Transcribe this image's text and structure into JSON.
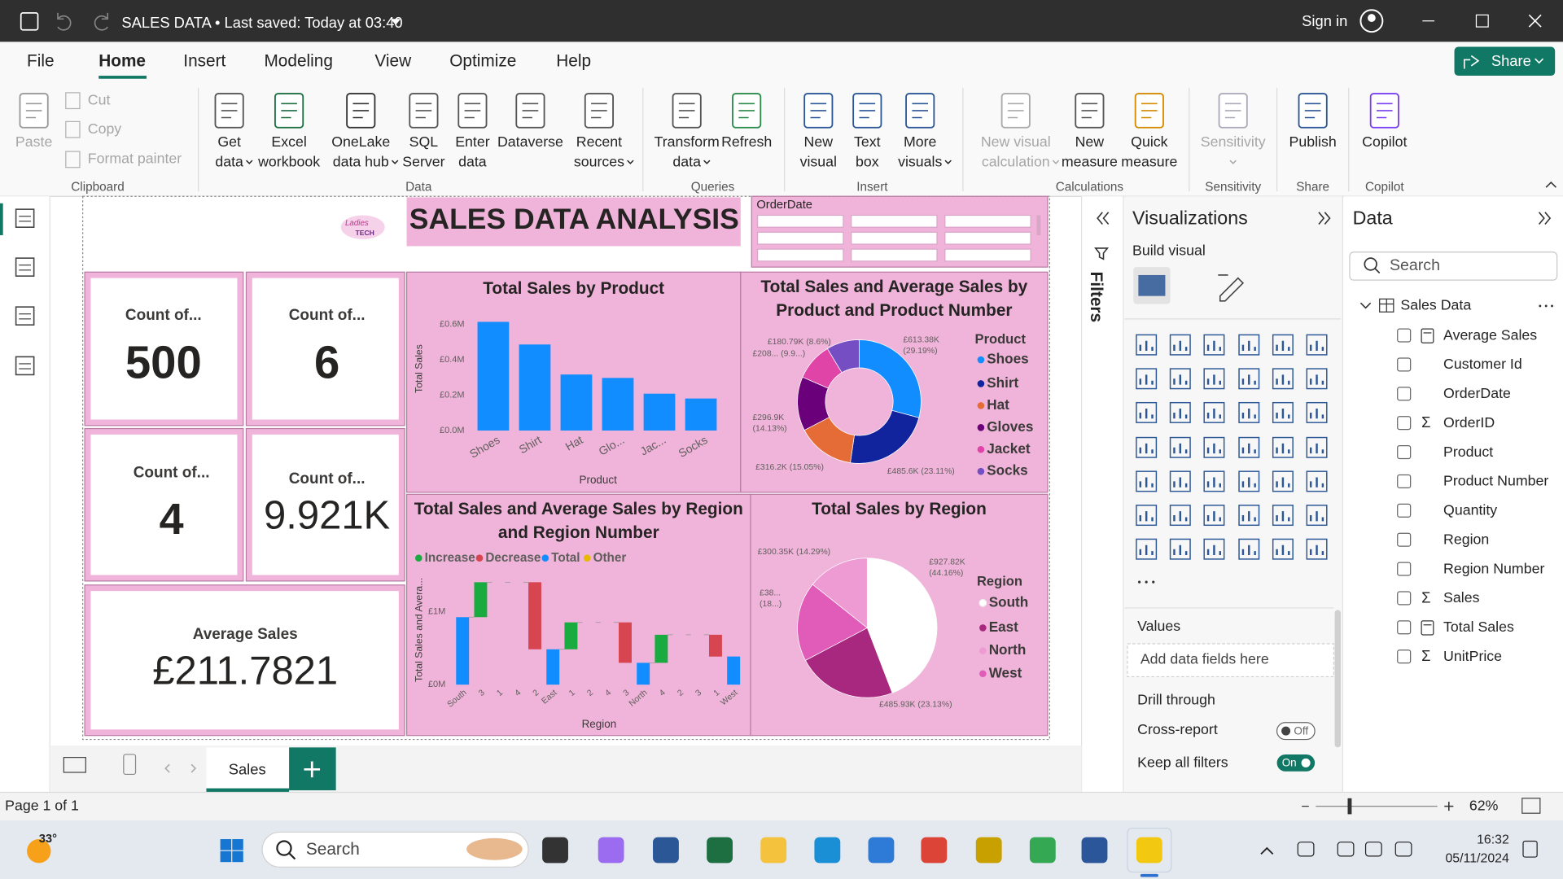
{
  "title_bar": {
    "document": "SALES DATA  •  Last saved: Today at 03:40",
    "sign_in": "Sign in"
  },
  "menu": {
    "tabs": [
      "File",
      "Home",
      "Insert",
      "Modeling",
      "View",
      "Optimize",
      "Help"
    ],
    "active": 1,
    "share": "Share"
  },
  "ribbon": {
    "buttons": [
      {
        "lines": [
          "Paste"
        ],
        "enabled": false
      },
      {
        "lines": [
          "Get",
          "data"
        ],
        "enabled": true,
        "dropdown": true
      },
      {
        "lines": [
          "Excel",
          "workbook"
        ],
        "enabled": true
      },
      {
        "lines": [
          "OneLake",
          "data hub"
        ],
        "enabled": true,
        "dropdown": true
      },
      {
        "lines": [
          "SQL",
          "Server"
        ],
        "enabled": true
      },
      {
        "lines": [
          "Enter",
          "data"
        ],
        "enabled": true
      },
      {
        "lines": [
          "Dataverse"
        ],
        "enabled": true
      },
      {
        "lines": [
          "Recent",
          "sources"
        ],
        "enabled": true,
        "dropdown": true
      },
      {
        "lines": [
          "Transform",
          "data"
        ],
        "enabled": true,
        "dropdown": true
      },
      {
        "lines": [
          "Refresh"
        ],
        "enabled": true
      },
      {
        "lines": [
          "New",
          "visual"
        ],
        "enabled": true
      },
      {
        "lines": [
          "Text",
          "box"
        ],
        "enabled": true
      },
      {
        "lines": [
          "More",
          "visuals"
        ],
        "enabled": true,
        "dropdown": true
      },
      {
        "lines": [
          "New visual",
          "calculation"
        ],
        "enabled": false,
        "dropdown": true
      },
      {
        "lines": [
          "New",
          "measure"
        ],
        "enabled": true
      },
      {
        "lines": [
          "Quick",
          "measure"
        ],
        "enabled": true
      },
      {
        "lines": [
          "Sensitivity"
        ],
        "enabled": false,
        "dropdown": true
      },
      {
        "lines": [
          "Publish"
        ],
        "enabled": true
      },
      {
        "lines": [
          "Copilot"
        ],
        "enabled": true
      }
    ],
    "small_buttons": [
      "Cut",
      "Copy",
      "Format painter"
    ],
    "groups": [
      "Clipboard",
      "Data",
      "Queries",
      "Insert",
      "Calculations",
      "Sensitivity",
      "Share",
      "Copilot"
    ]
  },
  "report": {
    "title": "SALES DATA ANALYSIS",
    "logo": [
      "Ladies",
      "TECH"
    ],
    "slicer": "OrderDate",
    "cards": [
      {
        "label": "Count of...",
        "value": "500",
        "bold": true
      },
      {
        "label": "Count of...",
        "value": "6",
        "bold": true
      },
      {
        "label": "Count of...",
        "value": "4",
        "bold": true
      },
      {
        "label": "Count of...",
        "value": "9.921K",
        "bold": false
      },
      {
        "label": "Average Sales",
        "value": "£211.7821",
        "bold": false
      }
    ]
  },
  "chart_data": [
    {
      "type": "bar",
      "title": "Total Sales by Product",
      "x_label": "Product",
      "y_label": "Total Sales",
      "categories": [
        "Shoes",
        "Shirt",
        "Hat",
        "Glo...",
        "Jac...",
        "Socks"
      ],
      "values": [
        0.61338,
        0.4856,
        0.3162,
        0.2969,
        0.208,
        0.18079
      ],
      "color": "#118dff",
      "ylim": [
        0,
        0.63
      ],
      "yticks": [
        {
          "value": 0,
          "label": "£0.0M"
        },
        {
          "value": 0.2,
          "label": "£0.2M"
        },
        {
          "value": 0.4,
          "label": "£0.4M"
        },
        {
          "value": 0.6,
          "label": "£0.6M"
        }
      ],
      "grid": false
    },
    {
      "type": "donut",
      "title": "Total Sales and Average Sales by Product and Product Number",
      "legend_title": "Product",
      "categories": [
        "Shoes",
        "Shirt",
        "Hat",
        "Gloves",
        "Jacket",
        "Socks"
      ],
      "values": [
        613.38,
        485.6,
        316.2,
        296.9,
        208,
        180.79
      ],
      "value_labels": [
        "£613.38K (29.19%)",
        "£485.6K (23.11%)",
        "£316.2K (15.05%)",
        "£296.9K (14.13%)",
        "£208... (9.9...)",
        "£180.79K (8.6%)"
      ],
      "colors": [
        "#118dff",
        "#12239e",
        "#e66c37",
        "#6b007b",
        "#e044a7",
        "#744ec2"
      ]
    },
    {
      "type": "waterfall",
      "title": "Total Sales and Average Sales by Region and Region Number",
      "x_label": "Region",
      "y_label": "Total Sales and Avera...",
      "legend": [
        {
          "name": "Increase",
          "color": "#1aab40"
        },
        {
          "name": "Decrease",
          "color": "#d64550"
        },
        {
          "name": "Total",
          "color": "#118dff"
        },
        {
          "name": "Other",
          "color": "#e6b800"
        }
      ],
      "categories": [
        "South",
        "3",
        "1",
        "4",
        "2",
        "East",
        "1",
        "2",
        "4",
        "3",
        "North",
        "4",
        "2",
        "3",
        "1",
        "West"
      ],
      "values": [
        0.928,
        0.48,
        0,
        0,
        -0.922,
        0.486,
        0.37,
        0,
        0,
        -0.556,
        0.3,
        0.386,
        0,
        0,
        -0.3,
        0.387
      ],
      "point_types": [
        "Total",
        "Increase",
        "Increase",
        "Increase",
        "Decrease",
        "Total",
        "Increase",
        "Increase",
        "Increase",
        "Decrease",
        "Total",
        "Increase",
        "Increase",
        "Increase",
        "Decrease",
        "Total"
      ],
      "ylim": [
        0,
        1.5
      ],
      "yticks": [
        {
          "value": 0,
          "label": "£0M"
        },
        {
          "value": 1,
          "label": "£1M"
        }
      ],
      "grid": false
    },
    {
      "type": "pie",
      "title": "Total Sales by Region",
      "legend_title": "Region",
      "legend": [
        {
          "name": "South",
          "color": "#ffffff"
        },
        {
          "name": "East",
          "color": "#a8287f"
        },
        {
          "name": "North",
          "color": "#ee9ad3"
        },
        {
          "name": "West",
          "color": "#e05cb8"
        }
      ],
      "categories": [
        "South",
        "East",
        "West",
        "North"
      ],
      "values": [
        927.82,
        485.93,
        387,
        300.35
      ],
      "value_labels": [
        "£927.82K (44.16%)",
        "£485.93K (23.13%)",
        "£38... (18...)",
        "£300.35K (14.29%)"
      ],
      "colors": [
        "#ffffff",
        "#a8287f",
        "#e05cb8",
        "#ee9ad3"
      ]
    }
  ],
  "filters_pane": {
    "title": "Filters"
  },
  "visualizations_pane": {
    "title": "Visualizations",
    "build_visual": "Build visual",
    "values_label": "Values",
    "values_placeholder": "Add data fields here",
    "drill_through": "Drill through",
    "cross_report": {
      "label": "Cross-report",
      "state": "Off"
    },
    "keep_all_filters": {
      "label": "Keep all filters",
      "state": "On"
    }
  },
  "data_pane": {
    "title": "Data",
    "search_placeholder": "Search",
    "table": "Sales Data",
    "fields": [
      {
        "name": "Average Sales",
        "kind": "measure"
      },
      {
        "name": "Customer Id"
      },
      {
        "name": "OrderDate"
      },
      {
        "name": "OrderID",
        "icon": "Σ"
      },
      {
        "name": "Product"
      },
      {
        "name": "Product Number"
      },
      {
        "name": "Quantity"
      },
      {
        "name": "Region"
      },
      {
        "name": "Region Number"
      },
      {
        "name": "Sales",
        "icon": "Σ"
      },
      {
        "name": "Total Sales",
        "kind": "measure"
      },
      {
        "name": "UnitPrice",
        "icon": "Σ"
      }
    ]
  },
  "page_tabs": {
    "tabs": [
      "Sales"
    ]
  },
  "status_bar": {
    "page": "Page 1 of 1",
    "zoom": "62%"
  },
  "taskbar": {
    "weather": "33°",
    "search": "Search",
    "time": "16:32",
    "date": "05/11/2024"
  }
}
